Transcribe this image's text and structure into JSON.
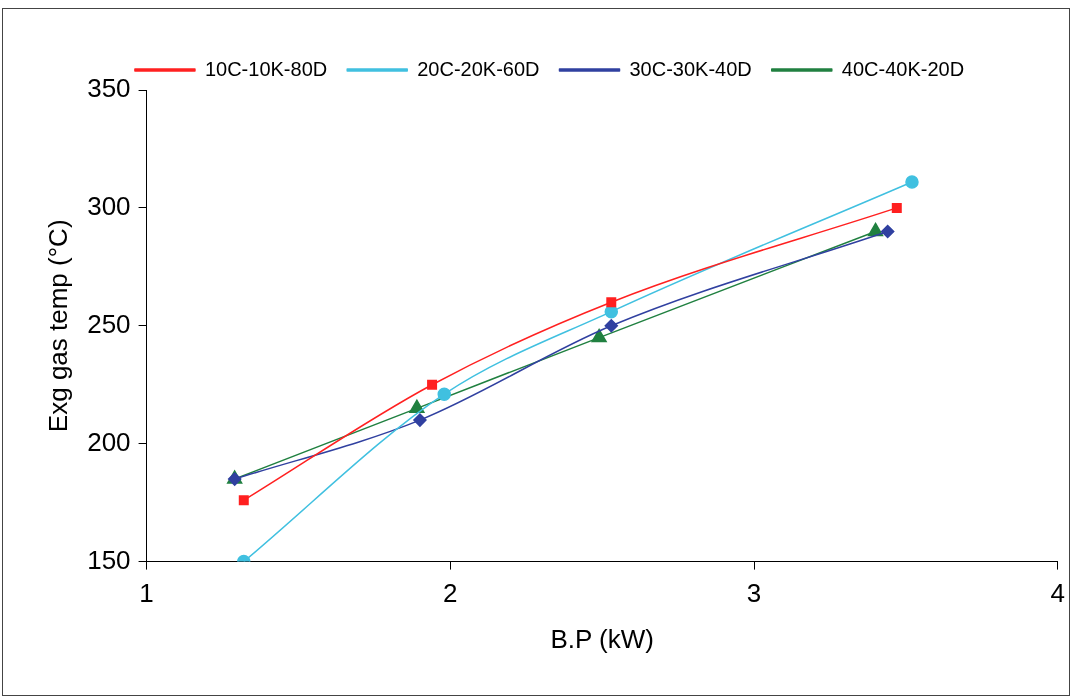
{
  "chart_data": {
    "type": "line",
    "xlabel": "B.P (kW)",
    "ylabel": "Exg gas temp (°C)",
    "xlim": [
      1,
      4
    ],
    "xticks": [
      1,
      2,
      3,
      4
    ],
    "ylim": [
      150,
      350
    ],
    "yticks": [
      150,
      200,
      250,
      300,
      350
    ],
    "grid": false,
    "legend": "top",
    "line_style": "solid",
    "series": [
      {
        "name": "10C-10K-80D",
        "color": "#ff2020",
        "marker": "square",
        "x": [
          1.32,
          1.94,
          2.53,
          3.47
        ],
        "values": [
          176,
          225,
          260,
          300
        ]
      },
      {
        "name": "20C-20K-60D",
        "color": "#40c0e0",
        "marker": "circle",
        "x": [
          1.32,
          1.98,
          2.53,
          3.52
        ],
        "values": [
          150,
          221,
          256,
          311
        ]
      },
      {
        "name": "30C-30K-40D",
        "color": "#3040a0",
        "marker": "diamond",
        "x": [
          1.29,
          1.9,
          2.53,
          3.44
        ],
        "values": [
          185,
          210,
          250,
          290
        ]
      },
      {
        "name": "40C-40K-20D",
        "color": "#208040",
        "marker": "triangle",
        "x": [
          1.29,
          1.89,
          2.49,
          3.4
        ],
        "values": [
          185,
          215,
          245,
          290
        ]
      }
    ]
  }
}
